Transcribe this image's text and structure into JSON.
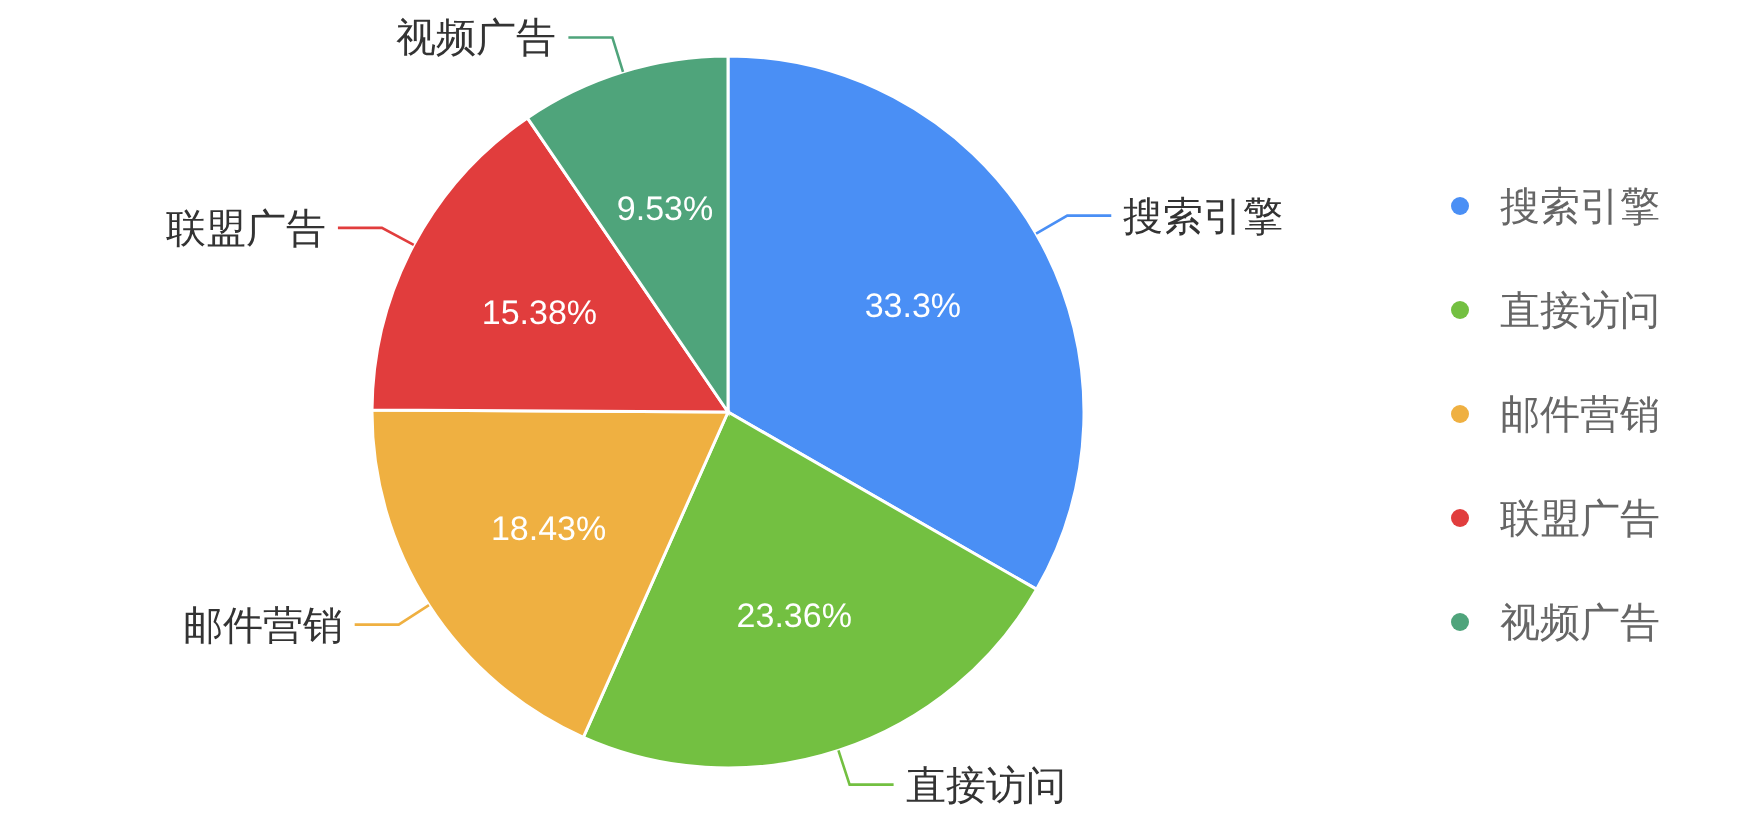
{
  "chart_data": {
    "type": "pie",
    "categories": [
      "搜索引擎",
      "直接访问",
      "邮件营销",
      "联盟广告",
      "视频广告"
    ],
    "values": [
      33.3,
      23.36,
      18.43,
      15.38,
      9.53
    ],
    "colors": [
      "#4a8ff5",
      "#73c041",
      "#efb041",
      "#e13d3d",
      "#4fa47b"
    ],
    "value_labels": [
      "33.3%",
      "23.36%",
      "18.43%",
      "15.38%",
      "9.53%"
    ],
    "legend": "right"
  }
}
